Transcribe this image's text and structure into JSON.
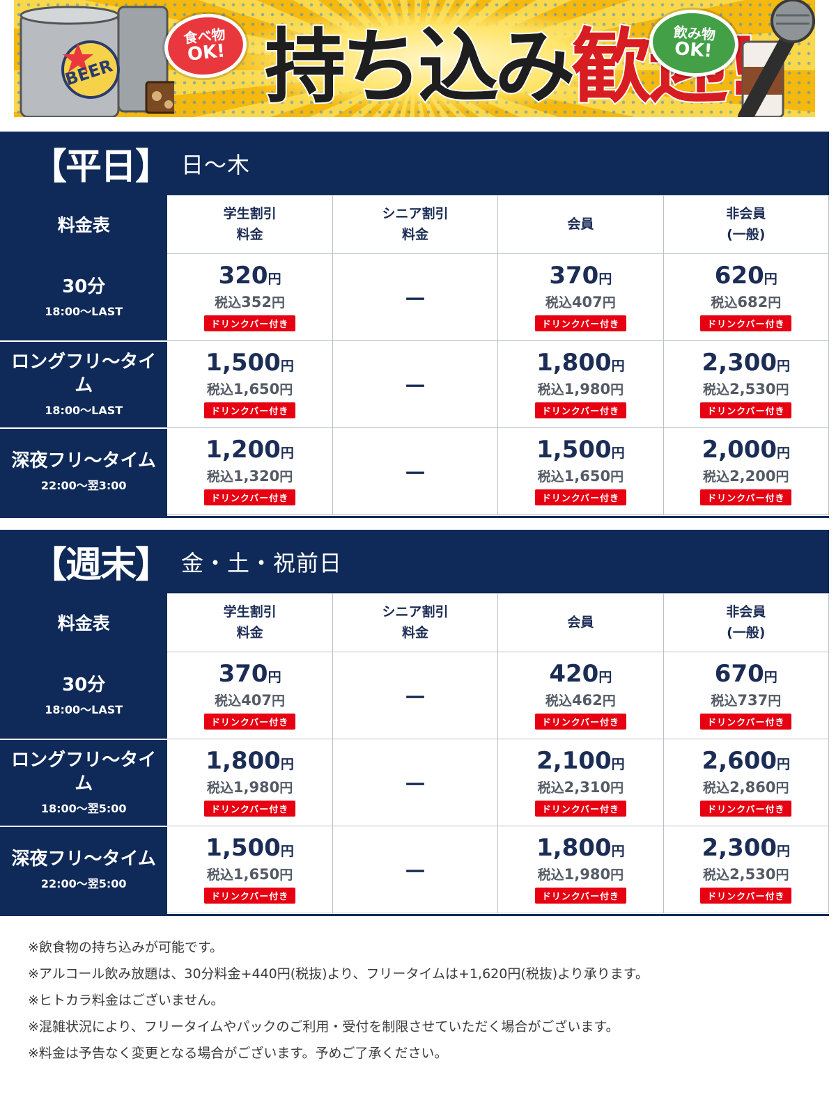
{
  "banner": {
    "food_bubble": [
      "食べ物",
      "OK!"
    ],
    "drink_bubble": [
      "飲み物",
      "OK!"
    ],
    "headline_part1": "持ち込み",
    "headline_part2": "歓迎!",
    "can_label": "BEER",
    "colors": {
      "background": "#f7c51a",
      "accent_red": "#d81d22",
      "accent_green": "#43a047"
    }
  },
  "weekday": {
    "title": "【平日】",
    "days": "日～木",
    "columns": {
      "corner": "料金表",
      "student": "学生割引\n料金",
      "senior": "シニア割引\n料金",
      "member": "会員",
      "nonmember": "非会員\n(一般)"
    },
    "rows": [
      {
        "plan": "30分",
        "hours": "18:00～LAST",
        "student": {
          "price": "320",
          "tax_prefix": "税込",
          "tax": "352",
          "yen": "円",
          "badge": "ドリンクバー付き"
        },
        "senior": "－",
        "member": {
          "price": "370",
          "tax_prefix": "税込",
          "tax": "407",
          "yen": "円",
          "badge": "ドリンクバー付き"
        },
        "nonmember": {
          "price": "620",
          "tax_prefix": "税込",
          "tax": "682",
          "yen": "円",
          "badge": "ドリンクバー付き"
        }
      },
      {
        "plan": "ロングフリ～タイム",
        "hours": "18:00～LAST",
        "student": {
          "price": "1,500",
          "tax_prefix": "税込",
          "tax": "1,650",
          "yen": "円",
          "badge": "ドリンクバー付き"
        },
        "senior": "－",
        "member": {
          "price": "1,800",
          "tax_prefix": "税込",
          "tax": "1,980",
          "yen": "円",
          "badge": "ドリンクバー付き"
        },
        "nonmember": {
          "price": "2,300",
          "tax_prefix": "税込",
          "tax": "2,530",
          "yen": "円",
          "badge": "ドリンクバー付き"
        }
      },
      {
        "plan": "深夜フリ～タイム",
        "hours": "22:00～翌3:00",
        "student": {
          "price": "1,200",
          "tax_prefix": "税込",
          "tax": "1,320",
          "yen": "円",
          "badge": "ドリンクバー付き"
        },
        "senior": "－",
        "member": {
          "price": "1,500",
          "tax_prefix": "税込",
          "tax": "1,650",
          "yen": "円",
          "badge": "ドリンクバー付き"
        },
        "nonmember": {
          "price": "2,000",
          "tax_prefix": "税込",
          "tax": "2,200",
          "yen": "円",
          "badge": "ドリンクバー付き"
        }
      }
    ]
  },
  "weekend": {
    "title": "【週末】",
    "days": "金・土・祝前日",
    "columns": {
      "corner": "料金表",
      "student": "学生割引\n料金",
      "senior": "シニア割引\n料金",
      "member": "会員",
      "nonmember": "非会員\n(一般)"
    },
    "rows": [
      {
        "plan": "30分",
        "hours": "18:00～LAST",
        "student": {
          "price": "370",
          "tax_prefix": "税込",
          "tax": "407",
          "yen": "円",
          "badge": "ドリンクバー付き"
        },
        "senior": "－",
        "member": {
          "price": "420",
          "tax_prefix": "税込",
          "tax": "462",
          "yen": "円",
          "badge": "ドリンクバー付き"
        },
        "nonmember": {
          "price": "670",
          "tax_prefix": "税込",
          "tax": "737",
          "yen": "円",
          "badge": "ドリンクバー付き"
        }
      },
      {
        "plan": "ロングフリ～タイム",
        "hours": "18:00～翌5:00",
        "student": {
          "price": "1,800",
          "tax_prefix": "税込",
          "tax": "1,980",
          "yen": "円",
          "badge": "ドリンクバー付き"
        },
        "senior": "－",
        "member": {
          "price": "2,100",
          "tax_prefix": "税込",
          "tax": "2,310",
          "yen": "円",
          "badge": "ドリンクバー付き"
        },
        "nonmember": {
          "price": "2,600",
          "tax_prefix": "税込",
          "tax": "2,860",
          "yen": "円",
          "badge": "ドリンクバー付き"
        }
      },
      {
        "plan": "深夜フリ～タイム",
        "hours": "22:00～翌5:00",
        "student": {
          "price": "1,500",
          "tax_prefix": "税込",
          "tax": "1,650",
          "yen": "円",
          "badge": "ドリンクバー付き"
        },
        "senior": "－",
        "member": {
          "price": "1,800",
          "tax_prefix": "税込",
          "tax": "1,980",
          "yen": "円",
          "badge": "ドリンクバー付き"
        },
        "nonmember": {
          "price": "2,300",
          "tax_prefix": "税込",
          "tax": "2,530",
          "yen": "円",
          "badge": "ドリンクバー付き"
        }
      }
    ]
  },
  "notes": [
    "※飲食物の持ち込みが可能です。",
    "※アルコール飲み放題は、30分料金+440円(税抜)より、フリータイムは+1,620円(税抜)より承ります。",
    "※ヒトカラ料金はございません。",
    "※混雑状況により、フリータイムやパックのご利用・受付を制限させていただく場合がございます。",
    "※料金は予告なく変更となる場合がございます。予めご了承ください。"
  ],
  "colors": {
    "navy": "#0f2a58",
    "badge_red": "#e60012",
    "price_text": "#1b2c55"
  }
}
